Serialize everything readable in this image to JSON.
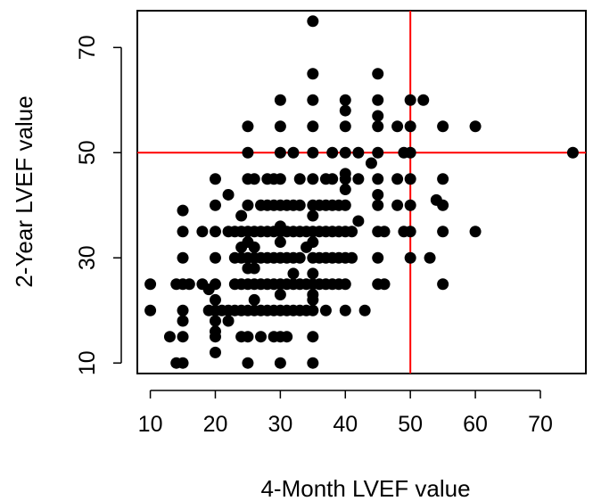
{
  "chart_data": {
    "type": "scatter",
    "title": "",
    "xlabel": "4-Month  LVEF value",
    "ylabel": "2-Year LVEF value",
    "xlim": [
      8,
      77
    ],
    "ylim": [
      8,
      77
    ],
    "xticks": [
      10,
      20,
      30,
      40,
      50,
      60,
      70
    ],
    "yticks": [
      10,
      30,
      50,
      70
    ],
    "grid": false,
    "reference_lines": {
      "color": "#ff0000",
      "vertical_x": 50,
      "horizontal_y": 50
    },
    "marker_color": "#000000",
    "points": [
      [
        10,
        25
      ],
      [
        10,
        20
      ],
      [
        13,
        15
      ],
      [
        14,
        25
      ],
      [
        14,
        10
      ],
      [
        15,
        39
      ],
      [
        15,
        35
      ],
      [
        15,
        30
      ],
      [
        15,
        25
      ],
      [
        15,
        20
      ],
      [
        15,
        18
      ],
      [
        15,
        15
      ],
      [
        15,
        10
      ],
      [
        16,
        25
      ],
      [
        18,
        25
      ],
      [
        18,
        35
      ],
      [
        19,
        24
      ],
      [
        19,
        20
      ],
      [
        20,
        45
      ],
      [
        20,
        40
      ],
      [
        20,
        35
      ],
      [
        20,
        30
      ],
      [
        20,
        25
      ],
      [
        20,
        22
      ],
      [
        20,
        20
      ],
      [
        20,
        18
      ],
      [
        20,
        16
      ],
      [
        20,
        15
      ],
      [
        20,
        12
      ],
      [
        21,
        20
      ],
      [
        22,
        42
      ],
      [
        22,
        35
      ],
      [
        22,
        20
      ],
      [
        22,
        18
      ],
      [
        23,
        35
      ],
      [
        23,
        30
      ],
      [
        23,
        25
      ],
      [
        23,
        20
      ],
      [
        24,
        38
      ],
      [
        24,
        35
      ],
      [
        24,
        32
      ],
      [
        24,
        30
      ],
      [
        24,
        25
      ],
      [
        24,
        20
      ],
      [
        24,
        15
      ],
      [
        25,
        55
      ],
      [
        25,
        50
      ],
      [
        25,
        45
      ],
      [
        25,
        40
      ],
      [
        25,
        35
      ],
      [
        25,
        33
      ],
      [
        25,
        30
      ],
      [
        25,
        28
      ],
      [
        25,
        25
      ],
      [
        25,
        20
      ],
      [
        25,
        15
      ],
      [
        25,
        10
      ],
      [
        26,
        45
      ],
      [
        26,
        35
      ],
      [
        26,
        32
      ],
      [
        26,
        30
      ],
      [
        26,
        28
      ],
      [
        26,
        25
      ],
      [
        26,
        22
      ],
      [
        26,
        20
      ],
      [
        27,
        40
      ],
      [
        27,
        35
      ],
      [
        27,
        30
      ],
      [
        27,
        25
      ],
      [
        27,
        20
      ],
      [
        27,
        15
      ],
      [
        28,
        45
      ],
      [
        28,
        40
      ],
      [
        28,
        35
      ],
      [
        28,
        30
      ],
      [
        28,
        25
      ],
      [
        28,
        20
      ],
      [
        29,
        45
      ],
      [
        29,
        40
      ],
      [
        29,
        35
      ],
      [
        29,
        30
      ],
      [
        29,
        25
      ],
      [
        29,
        20
      ],
      [
        29,
        15
      ],
      [
        30,
        60
      ],
      [
        30,
        55
      ],
      [
        30,
        50
      ],
      [
        30,
        45
      ],
      [
        30,
        40
      ],
      [
        30,
        36
      ],
      [
        30,
        35
      ],
      [
        30,
        33
      ],
      [
        30,
        30
      ],
      [
        30,
        25
      ],
      [
        30,
        23
      ],
      [
        30,
        20
      ],
      [
        30,
        15
      ],
      [
        30,
        10
      ],
      [
        31,
        40
      ],
      [
        31,
        35
      ],
      [
        31,
        30
      ],
      [
        31,
        25
      ],
      [
        31,
        20
      ],
      [
        31,
        15
      ],
      [
        32,
        50
      ],
      [
        32,
        40
      ],
      [
        32,
        35
      ],
      [
        32,
        30
      ],
      [
        32,
        27
      ],
      [
        32,
        25
      ],
      [
        32,
        20
      ],
      [
        33,
        45
      ],
      [
        33,
        40
      ],
      [
        33,
        35
      ],
      [
        33,
        30
      ],
      [
        33,
        25
      ],
      [
        33,
        20
      ],
      [
        34,
        35
      ],
      [
        34,
        32
      ],
      [
        34,
        25
      ],
      [
        34,
        20
      ],
      [
        35,
        75
      ],
      [
        35,
        65
      ],
      [
        35,
        60
      ],
      [
        35,
        55
      ],
      [
        35,
        50
      ],
      [
        35,
        45
      ],
      [
        35,
        40
      ],
      [
        35,
        38
      ],
      [
        35,
        35
      ],
      [
        35,
        33
      ],
      [
        35,
        30
      ],
      [
        35,
        27
      ],
      [
        35,
        25
      ],
      [
        35,
        23
      ],
      [
        35,
        22
      ],
      [
        35,
        20
      ],
      [
        35,
        15
      ],
      [
        35,
        10
      ],
      [
        36,
        40
      ],
      [
        36,
        35
      ],
      [
        36,
        30
      ],
      [
        36,
        25
      ],
      [
        37,
        45
      ],
      [
        37,
        40
      ],
      [
        37,
        35
      ],
      [
        37,
        30
      ],
      [
        37,
        25
      ],
      [
        37,
        20
      ],
      [
        38,
        50
      ],
      [
        38,
        45
      ],
      [
        38,
        40
      ],
      [
        38,
        35
      ],
      [
        38,
        30
      ],
      [
        38,
        25
      ],
      [
        39,
        40
      ],
      [
        39,
        35
      ],
      [
        39,
        30
      ],
      [
        39,
        25
      ],
      [
        40,
        60
      ],
      [
        40,
        58
      ],
      [
        40,
        55
      ],
      [
        40,
        50
      ],
      [
        40,
        46
      ],
      [
        40,
        45
      ],
      [
        40,
        43
      ],
      [
        40,
        40
      ],
      [
        40,
        35
      ],
      [
        40,
        30
      ],
      [
        40,
        25
      ],
      [
        40,
        20
      ],
      [
        41,
        35
      ],
      [
        41,
        30
      ],
      [
        42,
        50
      ],
      [
        42,
        45
      ],
      [
        42,
        37
      ],
      [
        43,
        20
      ],
      [
        44,
        48
      ],
      [
        45,
        65
      ],
      [
        45,
        60
      ],
      [
        45,
        57
      ],
      [
        45,
        55
      ],
      [
        45,
        50
      ],
      [
        45,
        45
      ],
      [
        45,
        42
      ],
      [
        45,
        40
      ],
      [
        45,
        35
      ],
      [
        45,
        30
      ],
      [
        45,
        25
      ],
      [
        46,
        35
      ],
      [
        46,
        25
      ],
      [
        48,
        55
      ],
      [
        48,
        45
      ],
      [
        48,
        40
      ],
      [
        49,
        50
      ],
      [
        49,
        35
      ],
      [
        50,
        60
      ],
      [
        50,
        55
      ],
      [
        50,
        50
      ],
      [
        50,
        45
      ],
      [
        50,
        40
      ],
      [
        50,
        35
      ],
      [
        50,
        30
      ],
      [
        52,
        60
      ],
      [
        53,
        30
      ],
      [
        54,
        41
      ],
      [
        55,
        55
      ],
      [
        55,
        45
      ],
      [
        55,
        40
      ],
      [
        55,
        35
      ],
      [
        55,
        25
      ],
      [
        60,
        55
      ],
      [
        60,
        35
      ],
      [
        75,
        50
      ]
    ]
  }
}
